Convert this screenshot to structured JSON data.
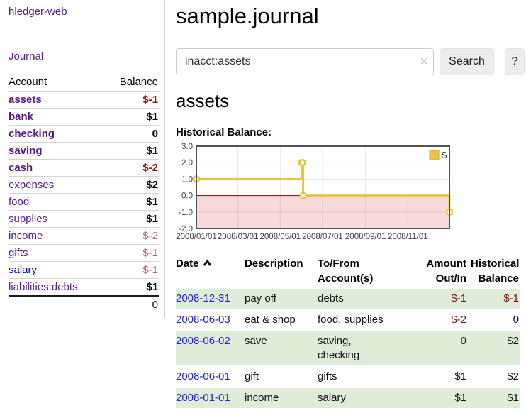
{
  "sidebar": {
    "brand": "hledger-web",
    "journal_link": "Journal",
    "accounts_table": {
      "headers": [
        "Account",
        "Balance"
      ],
      "rows": [
        {
          "name": "assets",
          "depth": 1,
          "bold": true,
          "balance": "$-1",
          "balance_style": "neg-strong"
        },
        {
          "name": "bank",
          "depth": 2,
          "bold": true,
          "balance": "$1",
          "balance_style": "pos"
        },
        {
          "name": "checking",
          "depth": 3,
          "bold": true,
          "balance": "0",
          "balance_style": "pos"
        },
        {
          "name": "saving",
          "depth": 3,
          "bold": true,
          "balance": "$1",
          "balance_style": "pos"
        },
        {
          "name": "cash",
          "depth": 2,
          "bold": true,
          "balance": "$-2",
          "balance_style": "neg-strong"
        },
        {
          "name": "expenses",
          "depth": 1,
          "bold": false,
          "balance": "$2",
          "balance_style": "pos"
        },
        {
          "name": "food",
          "depth": 2,
          "bold": false,
          "balance": "$1",
          "balance_style": "pos"
        },
        {
          "name": "supplies",
          "depth": 2,
          "bold": false,
          "balance": "$1",
          "balance_style": "pos"
        },
        {
          "name": "income",
          "depth": 1,
          "bold": false,
          "balance": "$-2",
          "balance_style": "neg-soft"
        },
        {
          "name": "gifts",
          "depth": 2,
          "bold": false,
          "balance": "$-1",
          "balance_style": "neg-soft"
        },
        {
          "name": "salary",
          "depth": 2,
          "bold": false,
          "link_color": "blue",
          "balance": "$-1",
          "balance_style": "neg-soft"
        },
        {
          "name": "liabilities:debts",
          "depth": 1,
          "bold": false,
          "balance": "$1",
          "balance_style": "pos"
        }
      ],
      "total": "0"
    }
  },
  "header": {
    "title": "sample.journal"
  },
  "search": {
    "value": "inacct:assets",
    "clear_icon": "×",
    "button_label": "Search",
    "help_label": "?"
  },
  "account_page": {
    "heading": "assets",
    "chart_label": "Historical Balance:"
  },
  "chart_data": {
    "type": "line",
    "step": true,
    "title": "Historical Balance of assets",
    "series": [
      {
        "name": "$",
        "color": "#edc240",
        "points": [
          [
            "2008-01-01",
            1
          ],
          [
            "2008-06-01",
            2
          ],
          [
            "2008-06-02",
            2
          ],
          [
            "2008-06-03",
            0
          ],
          [
            "2008-12-31",
            -1
          ]
        ]
      }
    ],
    "xlim": [
      "2008-01-01",
      "2008-12-31"
    ],
    "ylim": [
      -2,
      3
    ],
    "x_ticks": [
      "2008/01/01",
      "2008/03/01",
      "2008/05/01",
      "2008/07/01",
      "2008/09/01",
      "2008/11/01"
    ],
    "y_ticks": [
      3.0,
      2.0,
      1.0,
      0.0,
      -1.0,
      -2.0
    ],
    "legend": [
      "$"
    ],
    "legend_position": "top-right",
    "grid": true,
    "colors": {
      "line": "#edc240",
      "marker_fill": "#ffffff",
      "negative_region": "#f9d9d9",
      "zero_line": "#8b0000",
      "border": "#545454",
      "gridline": "rgba(0,0,0,0.09)",
      "tick_text": "#3c3c3c",
      "legend_box_border": "#caa63d"
    }
  },
  "register_table": {
    "headers": [
      "Date",
      "Description",
      "To/From\nAccount(s)",
      "Amount\nOut/In",
      "Historical\nBalance"
    ],
    "sort_column": "Date",
    "sort_direction": "asc",
    "rows": [
      {
        "date": "2008-12-31",
        "description": "pay off",
        "accounts": "debts",
        "amount": "$-1",
        "amount_neg": true,
        "balance": "$-1",
        "balance_neg": true
      },
      {
        "date": "2008-06-03",
        "description": "eat & shop",
        "accounts": "food, supplies",
        "amount": "$-2",
        "amount_neg": true,
        "balance": "0",
        "balance_neg": false
      },
      {
        "date": "2008-06-02",
        "description": "save",
        "accounts": "saving,\nchecking",
        "amount": "0",
        "amount_neg": false,
        "balance": "$2",
        "balance_neg": false
      },
      {
        "date": "2008-06-01",
        "description": "gift",
        "accounts": "gifts",
        "amount": "$1",
        "amount_neg": false,
        "balance": "$2",
        "balance_neg": false
      },
      {
        "date": "2008-01-01",
        "description": "income",
        "accounts": "salary",
        "amount": "$1",
        "amount_neg": false,
        "balance": "$1",
        "balance_neg": false
      }
    ],
    "row_stripe_color": "#deecd8"
  },
  "colors": {
    "link_purple": "#551a8b",
    "link_blue": "#0000ee",
    "neg_strong": "#8b1414",
    "neg_soft": "#bb6666",
    "neg_table": "#7d1313"
  }
}
